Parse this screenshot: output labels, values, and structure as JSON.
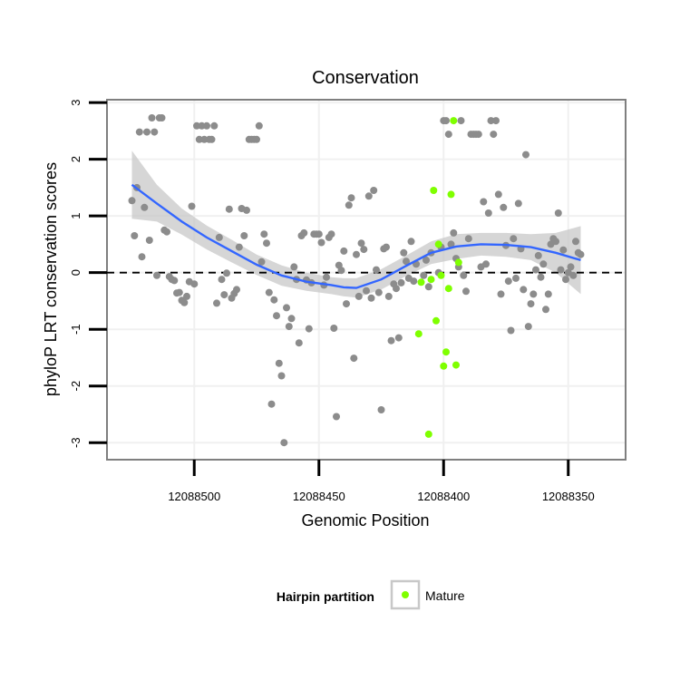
{
  "chart_data": {
    "type": "scatter",
    "title": "Conservation",
    "xlabel": "Genomic Position",
    "ylabel": "phyloP LRT conservation scores",
    "x_reversed": true,
    "xlim": [
      12088535,
      12088327
    ],
    "ylim": [
      -3.3,
      3.05
    ],
    "x_ticks": [
      12088500,
      12088450,
      12088400,
      12088350
    ],
    "x_tick_labels": [
      "12088500",
      "12088450",
      "12088400",
      "12088350"
    ],
    "y_ticks": [
      -3,
      -2,
      -1,
      0,
      1,
      2,
      3
    ],
    "y_tick_labels": [
      "-3",
      "-2",
      "-1",
      "0",
      "1",
      "2",
      "3"
    ],
    "reference_line": {
      "y": 0,
      "style": "dashed"
    },
    "grid": true,
    "legend": {
      "title": "Hairpin partition",
      "position": "bottom",
      "entries": [
        "Mature"
      ]
    },
    "colors": {
      "other": "#8c8c8c",
      "mature": "#7fff00",
      "smooth": "#3366ff",
      "band": "#c8c8c8"
    },
    "series": [
      {
        "kind": "points",
        "points": [
          [
            12088525,
            1.27
          ],
          [
            12088524,
            0.65
          ],
          [
            12088523,
            1.5
          ],
          [
            12088522,
            2.48
          ],
          [
            12088521,
            0.28
          ],
          [
            12088520,
            1.15
          ],
          [
            12088519,
            2.48
          ],
          [
            12088518,
            0.57
          ],
          [
            12088517,
            2.73
          ],
          [
            12088516,
            2.48
          ],
          [
            12088515,
            -0.05
          ],
          [
            12088514,
            2.73
          ],
          [
            12088513,
            2.73
          ],
          [
            12088512,
            0.75
          ],
          [
            12088511,
            0.72
          ],
          [
            12088510,
            -0.07
          ],
          [
            12088509,
            -0.12
          ],
          [
            12088508,
            -0.14
          ],
          [
            12088507,
            -0.36
          ],
          [
            12088506,
            -0.35
          ],
          [
            12088505,
            -0.49
          ],
          [
            12088504,
            -0.53
          ],
          [
            12088503,
            -0.42
          ],
          [
            12088502,
            -0.16
          ],
          [
            12088501,
            1.17
          ],
          [
            12088500,
            -0.2
          ],
          [
            12088499,
            2.59
          ],
          [
            12088498,
            2.35
          ],
          [
            12088497,
            2.59
          ],
          [
            12088496,
            2.35
          ],
          [
            12088495,
            2.59
          ],
          [
            12088494,
            2.35
          ],
          [
            12088493,
            2.35
          ],
          [
            12088492,
            2.59
          ],
          [
            12088491,
            -0.54
          ],
          [
            12088490,
            0.62
          ],
          [
            12088489,
            -0.12
          ],
          [
            12088488,
            -0.39
          ],
          [
            12088487,
            -0.01
          ],
          [
            12088486,
            1.12
          ],
          [
            12088485,
            -0.45
          ],
          [
            12088484,
            -0.37
          ],
          [
            12088483,
            -0.3
          ],
          [
            12088482,
            0.45
          ],
          [
            12088481,
            1.13
          ],
          [
            12088480,
            0.65
          ],
          [
            12088479,
            1.1
          ],
          [
            12088478,
            2.35
          ],
          [
            12088477,
            2.35
          ],
          [
            12088476,
            2.35
          ],
          [
            12088475,
            2.35
          ],
          [
            12088474,
            2.59
          ],
          [
            12088473,
            0.19
          ],
          [
            12088472,
            0.68
          ],
          [
            12088471,
            0.52
          ],
          [
            12088470,
            -0.35
          ],
          [
            12088469,
            -2.32
          ],
          [
            12088468,
            -0.48
          ],
          [
            12088467,
            -0.76
          ],
          [
            12088466,
            -1.6
          ],
          [
            12088465,
            -1.82
          ],
          [
            12088464,
            -3.0
          ],
          [
            12088463,
            -0.62
          ],
          [
            12088462,
            -0.95
          ],
          [
            12088461,
            -0.81
          ],
          [
            12088460,
            0.1
          ],
          [
            12088459,
            -0.12
          ],
          [
            12088458,
            -1.24
          ],
          [
            12088457,
            0.65
          ],
          [
            12088456,
            0.7
          ],
          [
            12088455,
            -0.13
          ],
          [
            12088454,
            -0.99
          ],
          [
            12088453,
            -0.18
          ],
          [
            12088452,
            0.68
          ],
          [
            12088451,
            0.68
          ],
          [
            12088450,
            0.68
          ],
          [
            12088449,
            0.53
          ],
          [
            12088448,
            -0.22
          ],
          [
            12088447,
            -0.08
          ],
          [
            12088446,
            0.62
          ],
          [
            12088445,
            0.68
          ],
          [
            12088444,
            -0.98
          ],
          [
            12088443,
            -2.54
          ],
          [
            12088442,
            0.13
          ],
          [
            12088441,
            0.04
          ],
          [
            12088440,
            0.38
          ],
          [
            12088439,
            -0.55
          ],
          [
            12088438,
            1.19
          ],
          [
            12088437,
            1.32
          ],
          [
            12088436,
            -1.51
          ],
          [
            12088435,
            0.32
          ],
          [
            12088434,
            -0.42
          ],
          [
            12088433,
            0.52
          ],
          [
            12088432,
            0.41
          ],
          [
            12088431,
            -0.32
          ],
          [
            12088430,
            1.35
          ],
          [
            12088429,
            -0.45
          ],
          [
            12088428,
            1.45
          ],
          [
            12088427,
            0.05
          ],
          [
            12088426,
            -0.35
          ],
          [
            12088425,
            -2.42
          ],
          [
            12088424,
            0.42
          ],
          [
            12088423,
            0.45
          ],
          [
            12088422,
            -0.42
          ],
          [
            12088421,
            -1.2
          ],
          [
            12088420,
            -0.2
          ],
          [
            12088419,
            -0.28
          ],
          [
            12088418,
            -1.15
          ],
          [
            12088417,
            -0.18
          ],
          [
            12088416,
            0.35
          ],
          [
            12088415,
            0.2
          ],
          [
            12088414,
            -0.1
          ],
          [
            12088413,
            0.55
          ],
          [
            12088412,
            -0.15
          ],
          [
            12088411,
            0.15
          ],
          [
            12088408,
            -0.05
          ],
          [
            12088407,
            0.22
          ],
          [
            12088406,
            -0.25
          ],
          [
            12088405,
            0.35
          ],
          [
            12088402,
            0.0
          ],
          [
            12088401,
            0.45
          ],
          [
            12088400,
            2.68
          ],
          [
            12088399,
            2.68
          ],
          [
            12088398,
            2.44
          ],
          [
            12088397,
            0.5
          ],
          [
            12088396,
            0.7
          ],
          [
            12088395,
            0.25
          ],
          [
            12088394,
            0.1
          ],
          [
            12088393,
            2.68
          ],
          [
            12088392,
            -0.05
          ],
          [
            12088391,
            -0.33
          ],
          [
            12088390,
            0.6
          ],
          [
            12088389,
            2.44
          ],
          [
            12088388,
            2.44
          ],
          [
            12088387,
            2.44
          ],
          [
            12088386,
            2.44
          ],
          [
            12088385,
            0.1
          ],
          [
            12088384,
            1.25
          ],
          [
            12088383,
            0.15
          ],
          [
            12088382,
            1.05
          ],
          [
            12088381,
            2.68
          ],
          [
            12088380,
            2.44
          ],
          [
            12088379,
            2.68
          ],
          [
            12088378,
            1.38
          ],
          [
            12088377,
            -0.38
          ],
          [
            12088376,
            1.15
          ],
          [
            12088375,
            0.48
          ],
          [
            12088374,
            -0.15
          ],
          [
            12088373,
            -1.02
          ],
          [
            12088372,
            0.6
          ],
          [
            12088371,
            -0.1
          ],
          [
            12088370,
            1.22
          ],
          [
            12088369,
            0.42
          ],
          [
            12088368,
            -0.3
          ],
          [
            12088367,
            2.08
          ],
          [
            12088366,
            -0.95
          ],
          [
            12088365,
            -0.55
          ],
          [
            12088364,
            -0.38
          ],
          [
            12088363,
            0.05
          ],
          [
            12088362,
            0.3
          ],
          [
            12088361,
            -0.08
          ],
          [
            12088360,
            0.15
          ],
          [
            12088359,
            -0.65
          ],
          [
            12088358,
            -0.38
          ],
          [
            12088357,
            0.5
          ],
          [
            12088356,
            0.6
          ],
          [
            12088355,
            0.55
          ],
          [
            12088354,
            1.05
          ],
          [
            12088353,
            0.05
          ],
          [
            12088352,
            0.4
          ],
          [
            12088351,
            -0.12
          ],
          [
            12088350,
            0.0
          ],
          [
            12088349,
            0.1
          ],
          [
            12088348,
            -0.05
          ],
          [
            12088347,
            0.55
          ],
          [
            12088346,
            0.35
          ],
          [
            12088345,
            0.32
          ]
        ]
      },
      {
        "name": "Mature",
        "kind": "points",
        "points": [
          [
            12088410,
            -1.08
          ],
          [
            12088409,
            -0.17
          ],
          [
            12088406,
            -2.85
          ],
          [
            12088405,
            -0.12
          ],
          [
            12088404,
            1.45
          ],
          [
            12088403,
            -0.85
          ],
          [
            12088402,
            0.5
          ],
          [
            12088401,
            -0.05
          ],
          [
            12088400,
            -1.65
          ],
          [
            12088399,
            -1.4
          ],
          [
            12088398,
            -0.28
          ],
          [
            12088397,
            1.38
          ],
          [
            12088396,
            2.68
          ],
          [
            12088395,
            -1.63
          ],
          [
            12088394,
            0.18
          ]
        ]
      },
      {
        "kind": "smooth",
        "x": [
          12088525,
          12088515,
          12088505,
          12088495,
          12088485,
          12088475,
          12088465,
          12088455,
          12088445,
          12088440,
          12088435,
          12088425,
          12088415,
          12088405,
          12088395,
          12088385,
          12088375,
          12088365,
          12088355,
          12088345
        ],
        "y": [
          1.55,
          1.22,
          0.9,
          0.62,
          0.38,
          0.14,
          -0.05,
          -0.16,
          -0.22,
          -0.26,
          -0.27,
          -0.12,
          0.12,
          0.35,
          0.46,
          0.5,
          0.49,
          0.45,
          0.35,
          0.22
        ],
        "upper": [
          2.15,
          1.55,
          1.13,
          0.83,
          0.58,
          0.32,
          0.13,
          0.0,
          -0.08,
          -0.1,
          -0.1,
          0.06,
          0.3,
          0.55,
          0.68,
          0.7,
          0.7,
          0.68,
          0.7,
          0.82
        ],
        "lower": [
          0.95,
          0.9,
          0.67,
          0.41,
          0.18,
          -0.04,
          -0.23,
          -0.32,
          -0.38,
          -0.42,
          -0.44,
          -0.3,
          -0.06,
          0.15,
          0.24,
          0.3,
          0.28,
          0.22,
          0.0,
          -0.38
        ]
      }
    ]
  }
}
